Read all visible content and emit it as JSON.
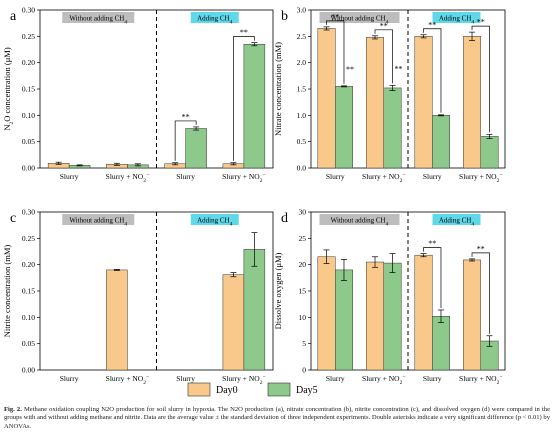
{
  "colors": {
    "day0": "#F9C98C",
    "day5": "#8DC98A",
    "without_box": "#BDBDBD",
    "adding_box": "#5FD8EA"
  },
  "legend": {
    "day0": "Day0",
    "day5": "Day5"
  },
  "caption": {
    "figure_label": "Fig. 2.",
    "text": "Methane oxidation coupling N2O production for soil slurry in hypoxia. The N2O production (a), nitrate concentration (b), nitrite concentration (c), and dissolved oxygen (d) were compared in the groups with and without adding methane and nitrite. Data are the average value ± the standard deviation of three independent experiments. Double asterisks indicate a very significant difference (p < 0.01) by ANOVAs."
  },
  "chart_data": [
    {
      "panel": "a",
      "type": "bar",
      "ylabel": "N2O concentration (μM)",
      "ylim": [
        0,
        0.3
      ],
      "yticks": [
        "0.00",
        "0.05",
        "0.10",
        "0.15",
        "0.20",
        "0.25",
        "0.30"
      ],
      "categories": [
        "Slurry",
        "Slurry + NO2-",
        "Slurry",
        "Slurry + NO2-"
      ],
      "group_labels": [
        "Without adding CH4",
        "Adding CH4"
      ],
      "series": [
        {
          "name": "Day0",
          "values": [
            0.009,
            0.007,
            0.008,
            0.008
          ],
          "errors": [
            0.002,
            0.002,
            0.002,
            0.002
          ]
        },
        {
          "name": "Day5",
          "values": [
            0.005,
            0.006,
            0.075,
            0.235
          ],
          "errors": [
            0.001,
            0.002,
            0.003,
            0.003
          ]
        }
      ],
      "significance": [
        "",
        "",
        "**",
        "**"
      ]
    },
    {
      "panel": "b",
      "type": "bar",
      "ylabel": "Nitrate concentration (mM)",
      "ylim": [
        0,
        3.0
      ],
      "yticks": [
        "0.0",
        "0.5",
        "1.0",
        "1.5",
        "2.0",
        "2.5",
        "3.0"
      ],
      "categories": [
        "Slurry",
        "Slurry + NO2-",
        "Slurry",
        "Slurry + NO2-"
      ],
      "group_labels": [
        "Without adding CH4",
        "Adding CH4"
      ],
      "series": [
        {
          "name": "Day0",
          "values": [
            2.65,
            2.48,
            2.5,
            2.5
          ],
          "errors": [
            0.03,
            0.03,
            0.03,
            0.08
          ]
        },
        {
          "name": "Day5",
          "values": [
            1.55,
            1.52,
            1.0,
            0.6
          ],
          "errors": [
            0.01,
            0.05,
            0.01,
            0.04
          ]
        }
      ],
      "significance": [
        "**",
        "**",
        "**",
        "**"
      ]
    },
    {
      "panel": "c",
      "type": "bar",
      "ylabel": "Nitrite concentration (mM)",
      "ylim": [
        0,
        0.3
      ],
      "yticks": [
        "0.00",
        "0.05",
        "0.10",
        "0.15",
        "0.20",
        "0.25",
        "0.30"
      ],
      "categories": [
        "Slurry",
        "Slurry + NO2-",
        "Slurry",
        "Slurry + NO2-"
      ],
      "group_labels": [
        "Without adding CH4",
        "Adding CH4"
      ],
      "series": [
        {
          "name": "Day0",
          "values": [
            0,
            0.19,
            0,
            0.181
          ],
          "errors": [
            0,
            0.001,
            0,
            0.004
          ]
        },
        {
          "name": "Day5",
          "values": [
            0,
            0,
            0,
            0.229
          ],
          "errors": [
            0,
            0,
            0,
            0.032
          ]
        }
      ],
      "significance": [
        "",
        "",
        "",
        ""
      ]
    },
    {
      "panel": "d",
      "type": "bar",
      "ylabel": "Dissolve oxygen (μM)",
      "ylim": [
        0,
        30
      ],
      "yticks": [
        "0",
        "5",
        "10",
        "15",
        "20",
        "25",
        "30"
      ],
      "categories": [
        "Slurry",
        "Slurry + NO2-",
        "Slurry",
        "Slurry + NO2-"
      ],
      "group_labels": [
        "Without adding CH4",
        "Adding CH4"
      ],
      "series": [
        {
          "name": "Day0",
          "values": [
            21.5,
            20.5,
            21.8,
            20.9
          ],
          "errors": [
            1.3,
            1.0,
            0.3,
            0.2
          ]
        },
        {
          "name": "Day5",
          "values": [
            19.0,
            20.3,
            10.2,
            5.5
          ],
          "errors": [
            2.0,
            1.8,
            1.2,
            1.0
          ]
        }
      ],
      "significance": [
        "",
        "",
        "**",
        "**"
      ]
    }
  ]
}
